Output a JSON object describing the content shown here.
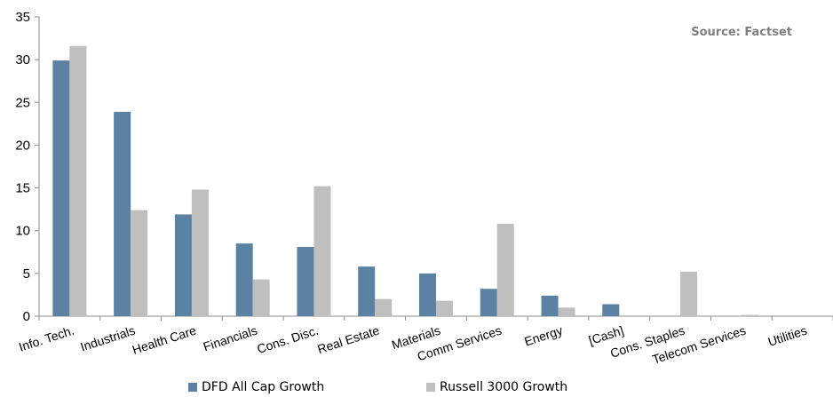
{
  "chart_data": {
    "type": "bar",
    "categories": [
      "Info. Tech.",
      "Industrials",
      "Health Care",
      "Financials",
      "Cons. Disc.",
      "Real Estate",
      "Materials",
      "Comm Services",
      "Energy",
      "[Cash]",
      "Cons. Staples",
      "Telecom Services",
      "Utilities"
    ],
    "series": [
      {
        "name": "DFD All Cap Growth",
        "color": "#5b81a3",
        "values": [
          29.9,
          23.9,
          11.9,
          8.5,
          8.1,
          5.8,
          5.0,
          3.2,
          2.4,
          1.4,
          0.0,
          0.0,
          0.0
        ]
      },
      {
        "name": "Russell 3000 Growth",
        "color": "#bfbfbf",
        "values": [
          31.6,
          12.4,
          14.8,
          4.3,
          15.2,
          2.0,
          1.8,
          10.8,
          1.0,
          0.0,
          5.2,
          0.15,
          0.0
        ]
      }
    ],
    "y_ticks": [
      "0",
      "5",
      "10",
      "15",
      "20",
      "25",
      "30",
      "35"
    ],
    "ylim": [
      0,
      35
    ],
    "title": "",
    "xlabel": "",
    "ylabel": "",
    "annotation": "Source: Factset",
    "legend_position": "bottom",
    "grid": false
  }
}
